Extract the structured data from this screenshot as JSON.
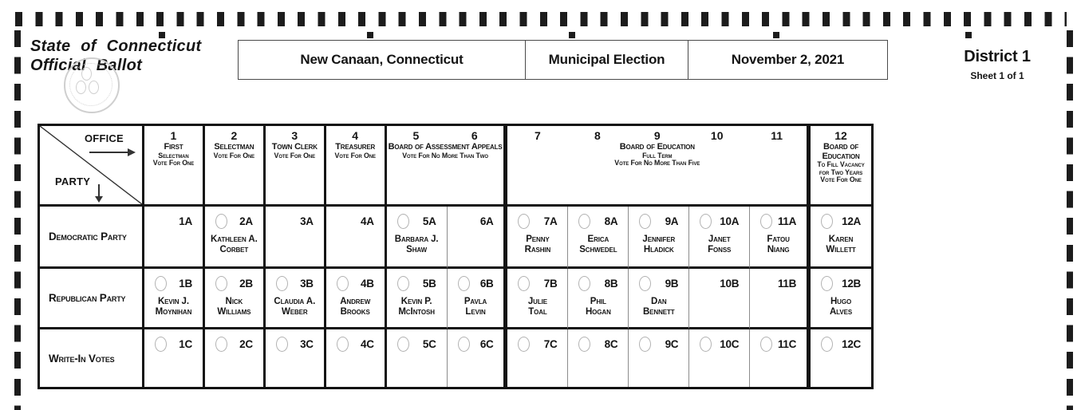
{
  "ballot": {
    "title_line1": "State of Connecticut",
    "title_line2": "Official Ballot",
    "municipality": "New Canaan, Connecticut",
    "election_type": "Municipal Election",
    "election_date": "November 2, 2021",
    "district": "District 1",
    "sheet": "Sheet 1 of 1"
  },
  "grid_header": {
    "office_label": "OFFICE",
    "party_label": "PARTY"
  },
  "contests": [
    {
      "num": "1",
      "main": "First",
      "sub1": "Selectman",
      "sub2": "Vote For One"
    },
    {
      "num": "2",
      "main": "Selectman",
      "sub1": "Vote For One"
    },
    {
      "num": "3",
      "main": "Town Clerk",
      "sub1": "Vote For One"
    },
    {
      "num": "4",
      "main": "Treasurer",
      "sub1": "Vote For One"
    },
    {
      "nums": [
        "5",
        "6"
      ],
      "main": "Board of Assessment Appeals",
      "sub1": "Vote For No More Than Two"
    },
    {
      "nums": [
        "7",
        "8",
        "9",
        "10",
        "11"
      ],
      "main": "Board of Education",
      "sub1": "Full Term",
      "sub2": "Vote For No More Than Five"
    },
    {
      "num": "12",
      "main": "Board of\nEducation",
      "sub1": "To Fill Vacancy",
      "sub2": "for Two Years",
      "sub3": "Vote For One"
    }
  ],
  "rows": [
    {
      "party": "Democratic Party",
      "cells": [
        {
          "label": "1A",
          "bubble": false,
          "name": ""
        },
        {
          "label": "2A",
          "bubble": true,
          "name": "Kathleen A.\nCorbet"
        },
        {
          "label": "3A",
          "bubble": false,
          "name": ""
        },
        {
          "label": "4A",
          "bubble": false,
          "name": ""
        },
        {
          "label": "5A",
          "bubble": true,
          "name": "Barbara J.\nShaw"
        },
        {
          "label": "6A",
          "bubble": false,
          "name": ""
        },
        {
          "label": "7A",
          "bubble": true,
          "name": "Penny\nRashin"
        },
        {
          "label": "8A",
          "bubble": true,
          "name": "Erica\nSchwedel"
        },
        {
          "label": "9A",
          "bubble": true,
          "name": "Jennifer\nHladick"
        },
        {
          "label": "10A",
          "bubble": true,
          "name": "Janet\nFonss"
        },
        {
          "label": "11A",
          "bubble": true,
          "name": "Fatou\nNiang"
        },
        {
          "label": "12A",
          "bubble": true,
          "name": "Karen\nWillett"
        }
      ]
    },
    {
      "party": "Republican Party",
      "cells": [
        {
          "label": "1B",
          "bubble": true,
          "name": "Kevin J.\nMoynihan"
        },
        {
          "label": "2B",
          "bubble": true,
          "name": "Nick\nWilliams"
        },
        {
          "label": "3B",
          "bubble": true,
          "name": "Claudia A.\nWeber"
        },
        {
          "label": "4B",
          "bubble": true,
          "name": "Andrew\nBrooks"
        },
        {
          "label": "5B",
          "bubble": true,
          "name": "Kevin P.\nMcIntosh"
        },
        {
          "label": "6B",
          "bubble": true,
          "name": "Pavla\nLevin"
        },
        {
          "label": "7B",
          "bubble": true,
          "name": "Julie\nToal"
        },
        {
          "label": "8B",
          "bubble": true,
          "name": "Phil\nHogan"
        },
        {
          "label": "9B",
          "bubble": true,
          "name": "Dan\nBennett"
        },
        {
          "label": "10B",
          "bubble": false,
          "name": ""
        },
        {
          "label": "11B",
          "bubble": false,
          "name": ""
        },
        {
          "label": "12B",
          "bubble": true,
          "name": "Hugo\nAlves"
        }
      ]
    },
    {
      "party": "Write-In Votes",
      "cells": [
        {
          "label": "1C",
          "bubble": true,
          "name": ""
        },
        {
          "label": "2C",
          "bubble": true,
          "name": ""
        },
        {
          "label": "3C",
          "bubble": true,
          "name": ""
        },
        {
          "label": "4C",
          "bubble": true,
          "name": ""
        },
        {
          "label": "5C",
          "bubble": true,
          "name": ""
        },
        {
          "label": "6C",
          "bubble": true,
          "name": ""
        },
        {
          "label": "7C",
          "bubble": true,
          "name": ""
        },
        {
          "label": "8C",
          "bubble": true,
          "name": ""
        },
        {
          "label": "9C",
          "bubble": true,
          "name": ""
        },
        {
          "label": "10C",
          "bubble": true,
          "name": ""
        },
        {
          "label": "11C",
          "bubble": true,
          "name": ""
        },
        {
          "label": "12C",
          "bubble": true,
          "name": ""
        }
      ]
    }
  ],
  "colors": {
    "ink": "#141414",
    "thin_divider": "#8c8c8c",
    "bubble_outline": "#b3b3b3",
    "seal_gray": "#cfcfcf"
  }
}
